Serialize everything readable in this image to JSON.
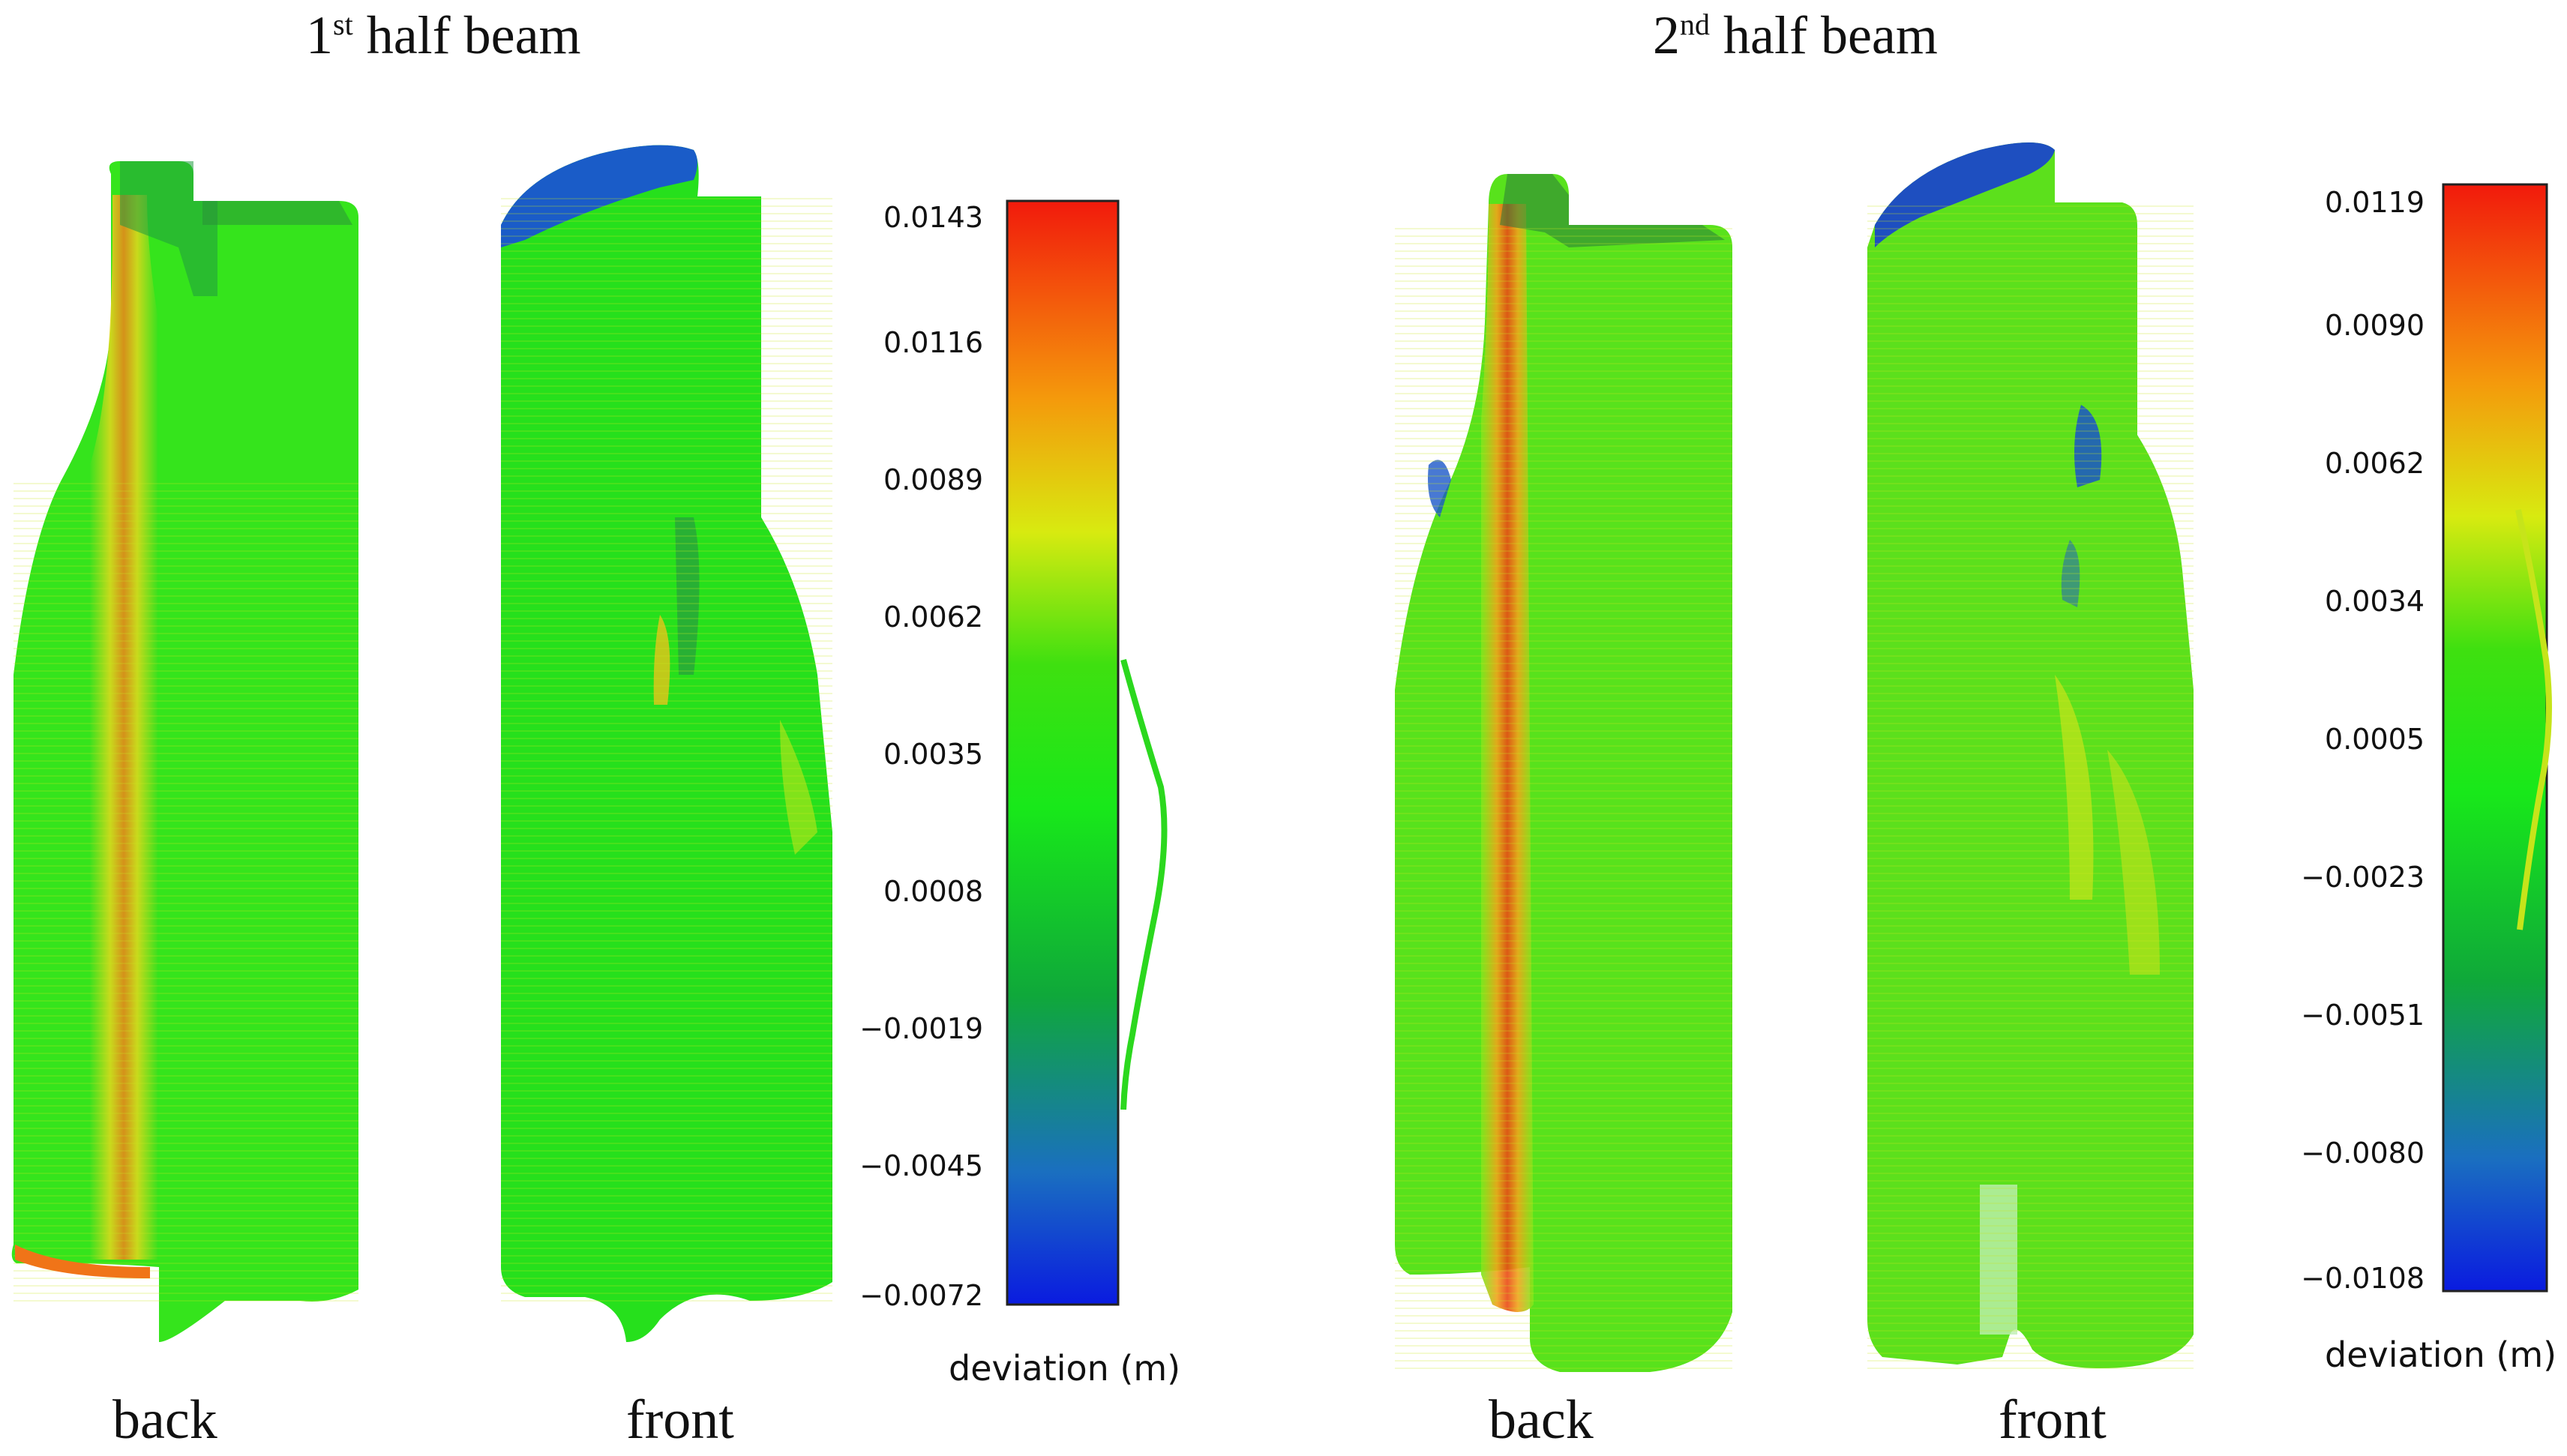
{
  "panels": [
    {
      "title_pre": "1",
      "title_sup": "st",
      "title_post": " half beam",
      "views": [
        "back",
        "front"
      ],
      "colorbar": {
        "ticks": [
          "0.0143",
          "0.0116",
          "0.0089",
          "0.0062",
          "0.0035",
          "0.0008",
          "−0.0019",
          "−0.0045",
          "−0.0072"
        ],
        "label": "deviation (m)"
      }
    },
    {
      "title_pre": "2",
      "title_sup": "nd",
      "title_post": " half beam",
      "views": [
        "back",
        "front"
      ],
      "colorbar": {
        "ticks": [
          "0.0119",
          "0.0090",
          "0.0062",
          "0.0034",
          "0.0005",
          "−0.0023",
          "−0.0051",
          "−0.0080",
          "−0.0108"
        ],
        "label": "deviation (m)"
      }
    }
  ],
  "colors": {
    "green": "#22e01e",
    "yellow": "#e6e81a",
    "orange": "#f07a10",
    "red": "#e81010",
    "blue": "#1530d8"
  }
}
